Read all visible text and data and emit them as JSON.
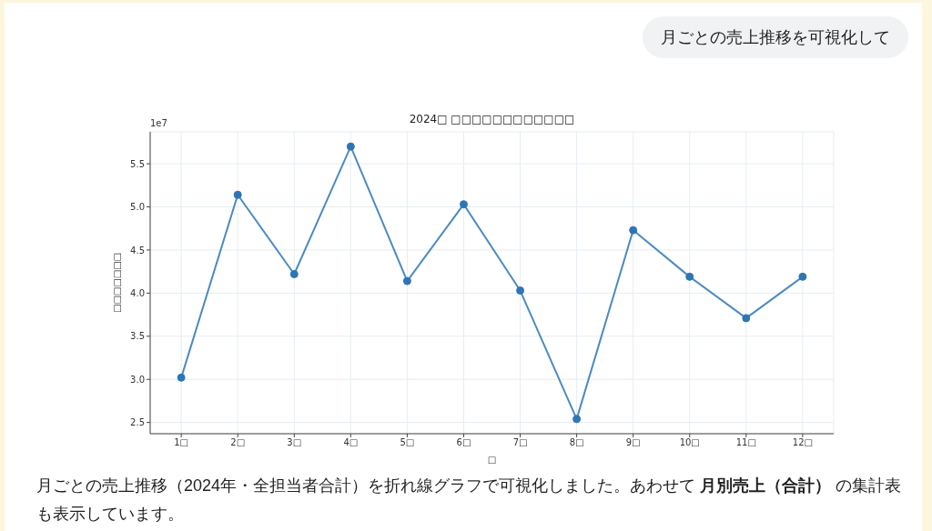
{
  "chart_data": {
    "type": "line",
    "title": "2024□ □□□□□□□□□□□□",
    "xlabel": "□",
    "ylabel": "□□□□□□□",
    "categories": [
      "1□",
      "2□",
      "3□",
      "4□",
      "5□",
      "6□",
      "7□",
      "8□",
      "9□",
      "10□",
      "11□",
      "12□"
    ],
    "series": [
      {
        "color": "#2e75b6",
        "values": [
          3.02,
          5.14,
          4.22,
          5.7,
          4.14,
          5.03,
          4.03,
          2.54,
          4.73,
          4.19,
          3.71,
          4.19
        ]
      }
    ],
    "ylim": [
      2.37,
      5.87
    ],
    "yticks": [
      2.5,
      {
        "value": 3,
        "label": "3.0"
      },
      3.5,
      {
        "value": 4,
        "label": "4.0"
      },
      4.5,
      {
        "value": 5,
        "label": "5.0"
      },
      5.5
    ],
    "grid": true,
    "marker": "circle",
    "line_style": "solid",
    "annotations": [
      "1e7",
      "月ごとの売上推移を可視化して",
      "月ごとの売上推移（2024年・全担当者合計）を折れ線グラフで可視化しました。あわせて ",
      "月別売上（合計）",
      " の集計表も表示しています。"
    ]
  }
}
